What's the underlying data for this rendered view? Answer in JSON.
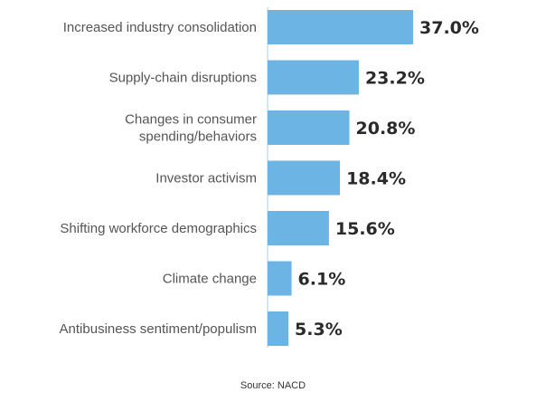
{
  "chart_data": {
    "type": "bar",
    "orientation": "horizontal",
    "title": "",
    "xlabel": "",
    "ylabel": "",
    "categories": [
      [
        "Increased industry consolidation"
      ],
      [
        "Supply-chain disruptions"
      ],
      [
        "Changes in consumer",
        "spending/behaviors"
      ],
      [
        "Investor activism"
      ],
      [
        "Shifting workforce demographics"
      ],
      [
        "Climate change"
      ],
      [
        "Antibusiness sentiment/populism"
      ]
    ],
    "values": [
      37.0,
      23.2,
      20.8,
      18.4,
      15.6,
      6.1,
      5.3
    ],
    "value_labels": [
      "37.0%",
      "23.2%",
      "20.8%",
      "18.4%",
      "15.6%",
      "6.1%",
      "5.3%"
    ],
    "xlim": [
      0,
      37.0
    ],
    "grid": false,
    "legend": "none",
    "bar_color": "#6cb4e4",
    "axis_color": "#a9cfe9"
  },
  "source": "Source: NACD"
}
